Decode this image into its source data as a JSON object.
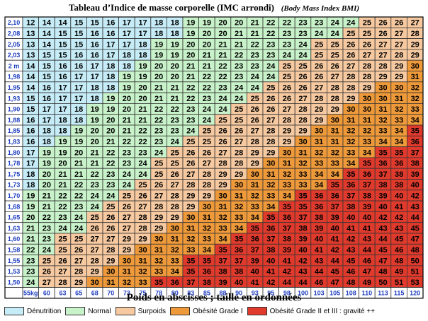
{
  "title": {
    "main": "Tableau d’Indice de masse corporelle (IMC arrondi)",
    "sub": "(Body Mass Index BMI)"
  },
  "x_axis_title": "Poids en abscisses ; taille en ordonnées",
  "colors": {
    "denutrition": "#c6ecf7",
    "normal": "#c8f2c9",
    "surpoids": "#f6c9a0",
    "obesite1": "#ef9a3a",
    "obesite2": "#e03a2c",
    "grid_line": "#333333",
    "axis_text": "#1f3fbf"
  },
  "legend": [
    {
      "label": "Dénutrition",
      "color": "#c6ecf7"
    },
    {
      "label": "Normal",
      "color": "#c8f2c9"
    },
    {
      "label": "Surpoids",
      "color": "#f6c9a0"
    },
    {
      "label": "Obésité Grade I",
      "color": "#ef9a3a"
    },
    {
      "label": "Obésité Grade II et III : gravité ++",
      "color": "#e03a2c"
    }
  ],
  "chart_data": {
    "type": "table",
    "title": "Tableau d’Indice de masse corporelle (IMC arrondi)",
    "xlabel": "Poids",
    "ylabel": "Taille",
    "columns": [
      "55kg",
      "60",
      "63",
      "65",
      "68",
      "70",
      "73",
      "75",
      "78",
      "80",
      "83",
      "85",
      "88",
      "90",
      "93",
      "95",
      "98",
      "100",
      "103",
      "105",
      "108",
      "110",
      "113",
      "115",
      "120"
    ],
    "rows": [
      "2,10",
      "2,08",
      "2,05",
      "2,03",
      "2 m",
      "1,98",
      "1,95",
      "1,93",
      "1,90",
      "1,88",
      "1,85",
      "1,83",
      "1,80",
      "1,78",
      "1,75",
      "1,73",
      "1,70",
      "1,68",
      "1,65",
      "1,63",
      "1,60",
      "1,58",
      "1,55",
      "1,53",
      "1,50"
    ],
    "values": [
      [
        12,
        14,
        14,
        15,
        15,
        16,
        17,
        17,
        18,
        18,
        19,
        19,
        20,
        20,
        21,
        22,
        22,
        23,
        23,
        24,
        24,
        25,
        26,
        26,
        27
      ],
      [
        13,
        14,
        15,
        15,
        16,
        16,
        17,
        17,
        18,
        18,
        19,
        20,
        20,
        21,
        21,
        22,
        23,
        23,
        24,
        24,
        25,
        25,
        26,
        27,
        28
      ],
      [
        13,
        14,
        15,
        15,
        16,
        17,
        17,
        18,
        19,
        19,
        20,
        20,
        21,
        21,
        22,
        23,
        23,
        24,
        25,
        25,
        26,
        26,
        27,
        27,
        29
      ],
      [
        13,
        15,
        15,
        16,
        16,
        17,
        18,
        18,
        19,
        19,
        20,
        21,
        21,
        22,
        23,
        23,
        24,
        24,
        25,
        25,
        26,
        27,
        27,
        28,
        29
      ],
      [
        14,
        15,
        16,
        16,
        17,
        18,
        18,
        19,
        20,
        20,
        21,
        21,
        22,
        23,
        23,
        24,
        25,
        25,
        26,
        26,
        27,
        28,
        28,
        29,
        30
      ],
      [
        14,
        15,
        16,
        17,
        17,
        18,
        19,
        19,
        20,
        20,
        21,
        22,
        22,
        23,
        24,
        24,
        25,
        26,
        26,
        27,
        28,
        28,
        29,
        29,
        31
      ],
      [
        14,
        16,
        17,
        17,
        18,
        18,
        19,
        20,
        21,
        21,
        22,
        22,
        23,
        24,
        24,
        25,
        26,
        26,
        27,
        28,
        28,
        29,
        30,
        30,
        32
      ],
      [
        15,
        16,
        17,
        17,
        18,
        19,
        20,
        20,
        21,
        21,
        22,
        23,
        24,
        24,
        25,
        26,
        26,
        27,
        28,
        28,
        29,
        30,
        30,
        31,
        32
      ],
      [
        15,
        17,
        17,
        18,
        19,
        19,
        20,
        21,
        22,
        22,
        23,
        24,
        24,
        25,
        26,
        26,
        27,
        28,
        29,
        29,
        30,
        30,
        31,
        32,
        33
      ],
      [
        16,
        17,
        18,
        18,
        19,
        20,
        21,
        21,
        22,
        23,
        23,
        24,
        25,
        25,
        26,
        27,
        28,
        28,
        29,
        30,
        31,
        31,
        32,
        33,
        34
      ],
      [
        16,
        18,
        18,
        19,
        20,
        20,
        21,
        22,
        23,
        23,
        24,
        25,
        26,
        26,
        27,
        28,
        29,
        29,
        30,
        31,
        32,
        32,
        33,
        34,
        35
      ],
      [
        16,
        18,
        19,
        19,
        20,
        21,
        22,
        22,
        23,
        24,
        25,
        25,
        26,
        27,
        28,
        28,
        29,
        30,
        31,
        31,
        32,
        33,
        34,
        34,
        36
      ],
      [
        17,
        19,
        19,
        20,
        21,
        22,
        23,
        23,
        24,
        25,
        26,
        26,
        27,
        28,
        29,
        29,
        30,
        31,
        32,
        32,
        33,
        34,
        35,
        35,
        37
      ],
      [
        17,
        19,
        20,
        21,
        21,
        22,
        23,
        24,
        25,
        25,
        26,
        27,
        28,
        28,
        29,
        30,
        31,
        32,
        33,
        33,
        34,
        35,
        36,
        36,
        38
      ],
      [
        18,
        20,
        21,
        21,
        22,
        23,
        24,
        24,
        25,
        26,
        27,
        28,
        29,
        29,
        30,
        31,
        32,
        33,
        34,
        34,
        35,
        36,
        37,
        38,
        39
      ],
      [
        18,
        20,
        21,
        22,
        23,
        23,
        24,
        25,
        26,
        27,
        28,
        28,
        29,
        30,
        31,
        32,
        33,
        33,
        34,
        35,
        36,
        37,
        38,
        38,
        40
      ],
      [
        19,
        21,
        22,
        22,
        24,
        24,
        25,
        26,
        27,
        28,
        29,
        29,
        30,
        31,
        32,
        33,
        34,
        35,
        36,
        36,
        37,
        38,
        39,
        40,
        42
      ],
      [
        19,
        21,
        22,
        23,
        24,
        25,
        26,
        27,
        28,
        28,
        29,
        30,
        31,
        32,
        33,
        34,
        35,
        35,
        36,
        37,
        38,
        39,
        40,
        41,
        43
      ],
      [
        20,
        22,
        23,
        24,
        25,
        26,
        27,
        28,
        29,
        29,
        30,
        31,
        32,
        33,
        34,
        35,
        36,
        37,
        38,
        39,
        40,
        40,
        42,
        42,
        44
      ],
      [
        21,
        23,
        24,
        24,
        26,
        26,
        27,
        28,
        29,
        30,
        31,
        32,
        33,
        34,
        35,
        36,
        37,
        38,
        39,
        40,
        41,
        41,
        43,
        43,
        45
      ],
      [
        21,
        23,
        25,
        25,
        27,
        27,
        29,
        29,
        30,
        31,
        32,
        33,
        34,
        35,
        36,
        37,
        38,
        39,
        40,
        41,
        42,
        43,
        44,
        45,
        47
      ],
      [
        22,
        24,
        25,
        26,
        27,
        28,
        29,
        30,
        31,
        32,
        33,
        34,
        35,
        36,
        37,
        38,
        39,
        40,
        41,
        42,
        43,
        44,
        45,
        46,
        48
      ],
      [
        23,
        25,
        26,
        27,
        28,
        29,
        30,
        31,
        32,
        33,
        35,
        35,
        37,
        37,
        39,
        40,
        41,
        42,
        43,
        44,
        45,
        46,
        47,
        48,
        50
      ],
      [
        23,
        26,
        27,
        28,
        29,
        30,
        31,
        32,
        33,
        34,
        35,
        36,
        38,
        38,
        40,
        41,
        42,
        43,
        44,
        45,
        46,
        47,
        48,
        49,
        51
      ],
      [
        24,
        27,
        28,
        29,
        30,
        31,
        32,
        33,
        35,
        36,
        37,
        38,
        39,
        40,
        41,
        42,
        44,
        44,
        46,
        47,
        48,
        49,
        50,
        51,
        53
      ]
    ],
    "categories_legend": [
      {
        "name": "Dénutrition"
      },
      {
        "name": "Normal"
      },
      {
        "name": "Surpoids"
      },
      {
        "name": "Obésité Grade I"
      },
      {
        "name": "Obésité Grade II et III : gravité ++"
      }
    ]
  }
}
